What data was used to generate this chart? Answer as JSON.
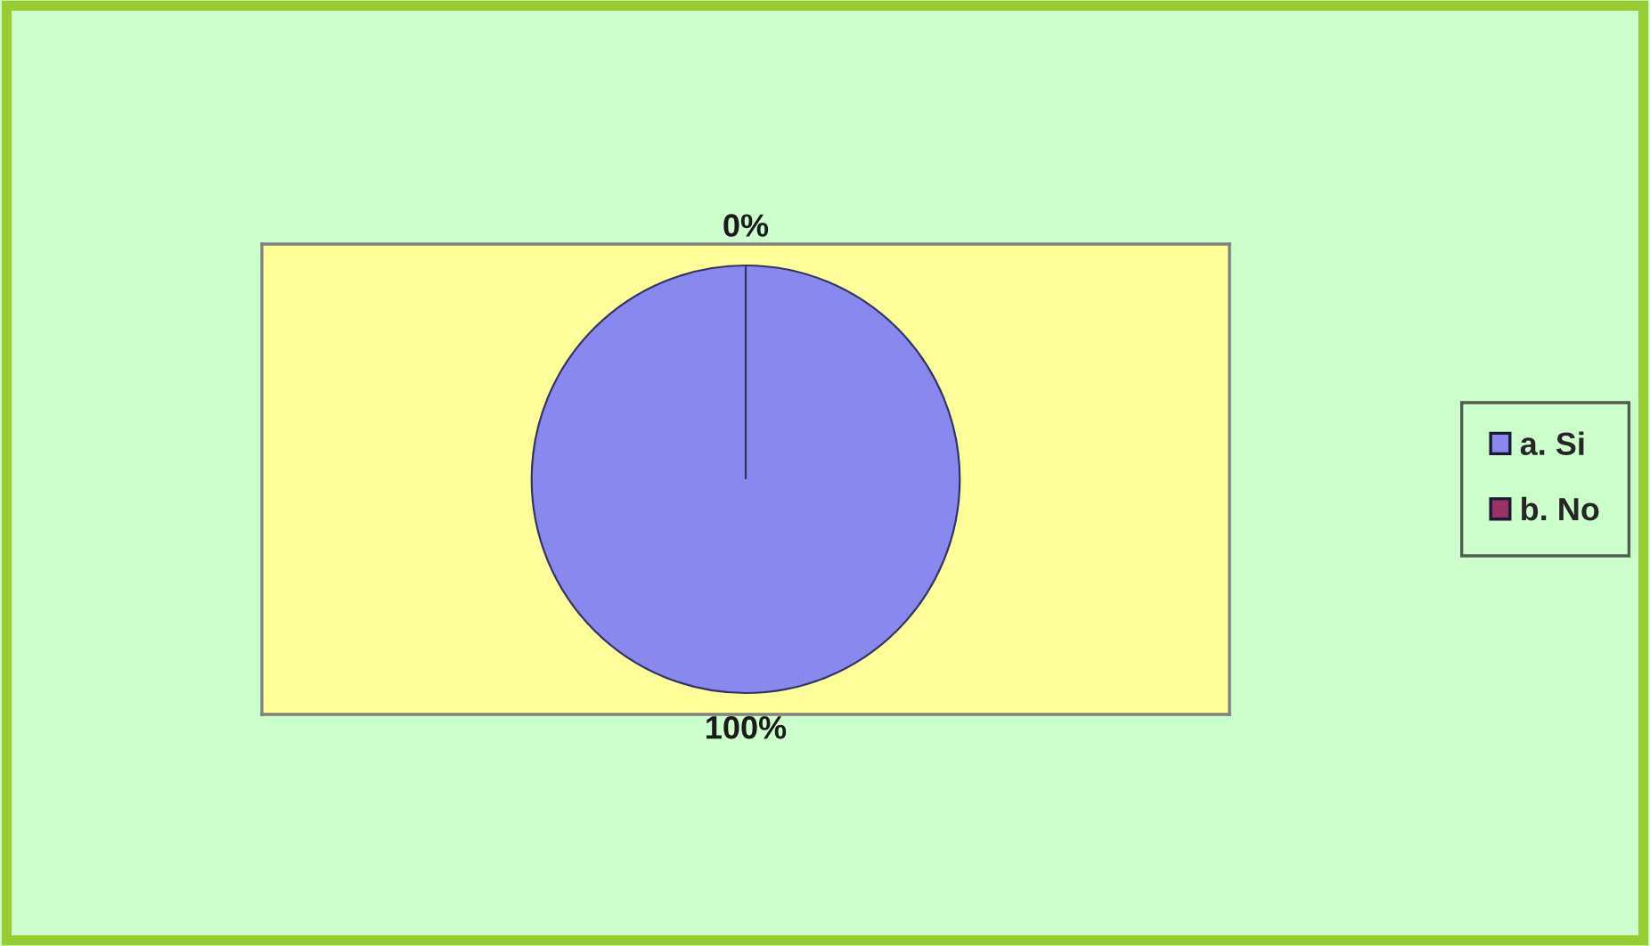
{
  "chart_data": {
    "type": "pie",
    "categories": [
      "a. Si",
      "b. No"
    ],
    "values": [
      100,
      0
    ],
    "colors": [
      "#8888ee",
      "#993366"
    ],
    "value_labels": [
      "100%",
      "0%"
    ],
    "legend": "right"
  }
}
